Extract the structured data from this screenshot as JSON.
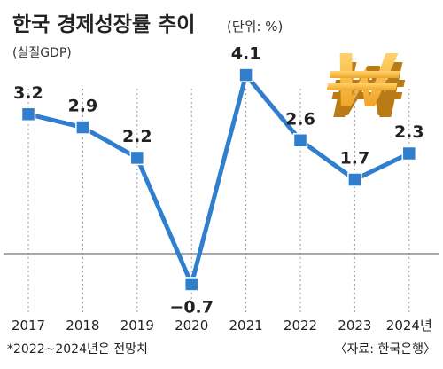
{
  "chart_data": {
    "type": "line",
    "title": "한국 경제성장률 추이",
    "unit": "(단위: %)",
    "subtitle": "(실질GDP)",
    "categories": [
      "2017",
      "2018",
      "2019",
      "2020",
      "2021",
      "2022",
      "2023",
      "2024년"
    ],
    "series": [
      {
        "values": [
          3.2,
          2.9,
          2.2,
          -0.7,
          4.1,
          2.6,
          1.7,
          2.3
        ]
      }
    ],
    "value_labels": [
      "3.2",
      "2.9",
      "2.2",
      "−0.7",
      "4.1",
      "2.6",
      "1.7",
      "2.3"
    ],
    "ylim": [
      -1.2,
      4.6
    ],
    "grid": "vertical dotted lines at each year",
    "line_color": "#2f7fce",
    "marker_color": "#2f7fce",
    "zero_line_color": "#777777",
    "footnote": "*2022~2024년은 전망치",
    "source": "〈자료: 한국은행〉",
    "decoration": "won-sign-icon"
  }
}
